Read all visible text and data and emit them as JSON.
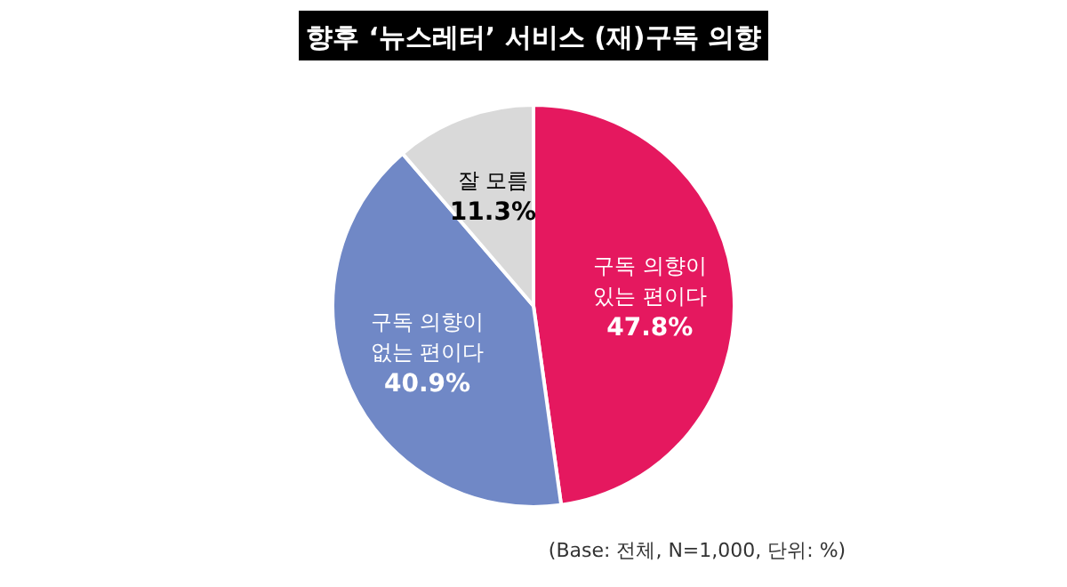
{
  "chart_data": {
    "type": "pie",
    "title": "향후 ‘뉴스레터’ 서비스 (재)구독 의향",
    "categories": [
      "구독 의향이 있는 편이다",
      "구독 의향이 없는 편이다",
      "잘 모름"
    ],
    "values": [
      47.8,
      40.9,
      11.3
    ],
    "colors": [
      "#e5185f",
      "#7088c6",
      "#d9d9d9"
    ],
    "value_labels": [
      "47.8%",
      "40.9%",
      "11.3%"
    ],
    "annotations": [
      "(Base: 전체, N=1,000, 단위: %)"
    ]
  }
}
